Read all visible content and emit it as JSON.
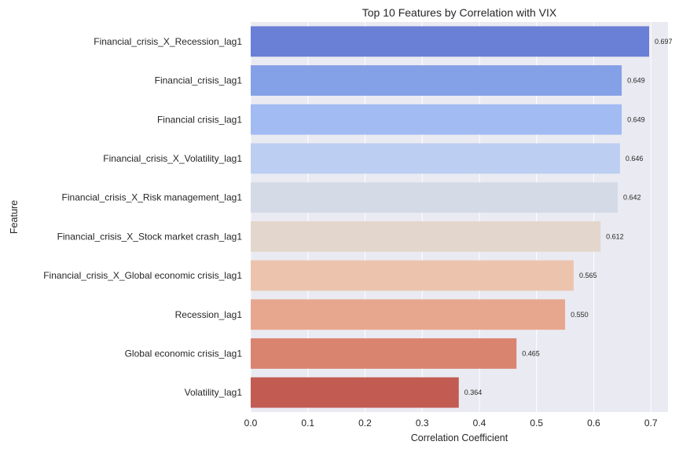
{
  "chart_data": {
    "type": "bar",
    "orientation": "horizontal",
    "title": "Top 10 Features by Correlation with VIX",
    "xlabel": "Correlation Coefficient",
    "ylabel": "Feature",
    "xlim": [
      0.0,
      0.73
    ],
    "xticks": [
      0.0,
      0.1,
      0.2,
      0.3,
      0.4,
      0.5,
      0.6,
      0.7
    ],
    "xtick_labels": [
      "0.0",
      "0.1",
      "0.2",
      "0.3",
      "0.4",
      "0.5",
      "0.6",
      "0.7"
    ],
    "grid": true,
    "legend": "none",
    "categories": [
      "Financial_crisis_X_Recession_lag1",
      "Financial_crisis_lag1",
      "Financial crisis_lag1",
      "Financial_crisis_X_Volatility_lag1",
      "Financial_crisis_X_Risk management_lag1",
      "Financial_crisis_X_Stock market crash_lag1",
      "Financial_crisis_X_Global economic crisis_lag1",
      "Recession_lag1",
      "Global economic crisis_lag1",
      "Volatility_lag1"
    ],
    "values": [
      0.697,
      0.649,
      0.649,
      0.646,
      0.642,
      0.612,
      0.565,
      0.55,
      0.465,
      0.364
    ],
    "value_labels": [
      "0.697",
      "0.649",
      "0.649",
      "0.646",
      "0.642",
      "0.612",
      "0.565",
      "0.550",
      "0.465",
      "0.364"
    ],
    "colors": [
      "#6a7fd6",
      "#84a0e6",
      "#a2bcf3",
      "#bccff2",
      "#d4dae6",
      "#e3d6cc",
      "#ecc4ae",
      "#e7a78f",
      "#d9846e",
      "#c25b52"
    ],
    "plot_background": "#eaeaf2",
    "grid_color": "#ffffff"
  }
}
